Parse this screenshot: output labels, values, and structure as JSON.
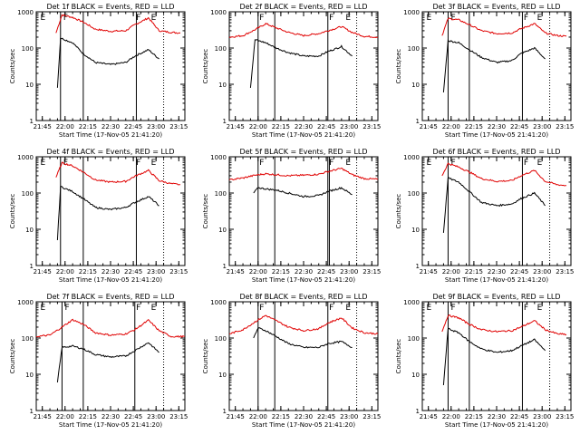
{
  "figure": {
    "x_tick_labels": [
      "21:45",
      "22:00",
      "22:15",
      "22:30",
      "22:45",
      "23:00",
      "23:15"
    ],
    "y_tick_labels": [
      "1",
      "10",
      "100",
      "1000"
    ],
    "xlabel": "Start Time (17-Nov-05 21:41:20)",
    "ylabel": "Counts/sec",
    "marker_labels": [
      "E",
      "F",
      "F",
      "E"
    ],
    "colors": {
      "black_series": "#000000",
      "red_series": "#e00000",
      "axes": "#000000",
      "background": "#ffffff"
    }
  },
  "chart_data": [
    {
      "type": "line",
      "title": "Det 1f BLACK = Events, RED = LLD",
      "xlabel": "Start Time (17-Nov-05 21:41:20)",
      "ylabel": "Counts/sec",
      "x_unit": "time (HH:MM, 17-Nov-05)",
      "xlim": [
        "21:41",
        "23:19"
      ],
      "ylim": [
        1,
        1000
      ],
      "yscale": "log",
      "vertical_lines": {
        "solid": [
          "21:57",
          "22:12",
          "22:47"
        ],
        "dotted": [
          "23:05"
        ]
      },
      "markers": [
        {
          "label": "E",
          "x": "21:43"
        },
        {
          "label": "F",
          "x": "21:58"
        },
        {
          "label": "F",
          "x": "22:46"
        },
        {
          "label": "E",
          "x": "22:56"
        }
      ],
      "series": [
        {
          "color": "red",
          "x": [
            "21:54",
            "21:58",
            "22:05",
            "22:12",
            "22:20",
            "22:30",
            "22:40",
            "22:46",
            "22:55",
            "23:02",
            "23:10",
            "23:16"
          ],
          "values": [
            260,
            820,
            700,
            520,
            330,
            290,
            300,
            440,
            680,
            300,
            270,
            260
          ]
        },
        {
          "color": "black",
          "x": [
            "21:55",
            "21:57",
            "22:05",
            "22:12",
            "22:20",
            "22:30",
            "22:40",
            "22:46",
            "22:55",
            "23:02"
          ],
          "values": [
            8,
            190,
            140,
            70,
            40,
            35,
            40,
            60,
            90,
            50
          ]
        }
      ]
    },
    {
      "type": "line",
      "title": "Det 2f BLACK = Events, RED = LLD",
      "xlabel": "Start Time (17-Nov-05 21:41:20)",
      "ylabel": "Counts/sec",
      "x_unit": "time (HH:MM, 17-Nov-05)",
      "xlim": [
        "21:41",
        "23:19"
      ],
      "ylim": [
        1,
        1000
      ],
      "yscale": "log",
      "vertical_lines": {
        "solid": [
          "22:00",
          "22:11",
          "22:46"
        ],
        "dotted": [
          "23:05"
        ]
      },
      "markers": [
        {
          "label": "F",
          "x": "22:00"
        },
        {
          "label": "F",
          "x": "22:46"
        },
        {
          "label": "E",
          "x": "22:57"
        }
      ],
      "series": [
        {
          "color": "red",
          "x": [
            "21:41",
            "21:50",
            "21:58",
            "22:05",
            "22:12",
            "22:20",
            "22:30",
            "22:40",
            "22:46",
            "22:55",
            "23:02",
            "23:10",
            "23:19"
          ],
          "values": [
            200,
            220,
            320,
            470,
            360,
            270,
            220,
            250,
            300,
            390,
            270,
            210,
            200
          ]
        },
        {
          "color": "black",
          "x": [
            "21:55",
            "21:58",
            "22:05",
            "22:12",
            "22:20",
            "22:30",
            "22:40",
            "22:46",
            "22:55",
            "23:02"
          ],
          "values": [
            8,
            170,
            140,
            100,
            75,
            60,
            60,
            80,
            110,
            60
          ]
        }
      ]
    },
    {
      "type": "line",
      "title": "Det 3f BLACK = Events, RED = LLD",
      "xlabel": "Start Time (17-Nov-05 21:41:20)",
      "ylabel": "Counts/sec",
      "x_unit": "time (HH:MM, 17-Nov-05)",
      "xlim": [
        "21:41",
        "23:19"
      ],
      "ylim": [
        1,
        1000
      ],
      "yscale": "log",
      "vertical_lines": {
        "solid": [
          "21:58",
          "22:12",
          "22:47"
        ],
        "dotted": [
          "23:05"
        ]
      },
      "markers": [
        {
          "label": "E",
          "x": "21:43"
        },
        {
          "label": "F",
          "x": "21:59"
        },
        {
          "label": "F",
          "x": "22:47"
        },
        {
          "label": "E",
          "x": "22:56"
        }
      ],
      "series": [
        {
          "color": "red",
          "x": [
            "21:54",
            "21:58",
            "22:05",
            "22:12",
            "22:20",
            "22:30",
            "22:40",
            "22:46",
            "22:55",
            "23:02",
            "23:10",
            "23:16"
          ],
          "values": [
            220,
            650,
            600,
            440,
            300,
            250,
            260,
            340,
            470,
            260,
            220,
            210
          ]
        },
        {
          "color": "black",
          "x": [
            "21:55",
            "21:58",
            "22:05",
            "22:12",
            "22:20",
            "22:30",
            "22:40",
            "22:46",
            "22:55",
            "23:02"
          ],
          "values": [
            6,
            160,
            140,
            90,
            55,
            40,
            45,
            70,
            100,
            50
          ]
        }
      ]
    },
    {
      "type": "line",
      "title": "Det 4f BLACK = Events, RED = LLD",
      "xlabel": "Start Time (17-Nov-05 21:41:20)",
      "ylabel": "Counts/sec",
      "x_unit": "time (HH:MM, 17-Nov-05)",
      "xlim": [
        "21:41",
        "23:19"
      ],
      "ylim": [
        1,
        1000
      ],
      "yscale": "log",
      "vertical_lines": {
        "solid": [
          "21:57",
          "22:12",
          "22:47"
        ],
        "dotted": [
          "23:05"
        ]
      },
      "markers": [
        {
          "label": "E",
          "x": "21:43"
        },
        {
          "label": "F",
          "x": "21:58"
        },
        {
          "label": "F",
          "x": "22:46"
        },
        {
          "label": "E",
          "x": "22:56"
        }
      ],
      "series": [
        {
          "color": "red",
          "x": [
            "21:54",
            "21:58",
            "22:05",
            "22:12",
            "22:20",
            "22:30",
            "22:40",
            "22:46",
            "22:55",
            "23:02",
            "23:10",
            "23:16"
          ],
          "values": [
            270,
            680,
            560,
            380,
            230,
            200,
            210,
            290,
            420,
            220,
            180,
            170
          ]
        },
        {
          "color": "black",
          "x": [
            "21:55",
            "21:57",
            "22:05",
            "22:12",
            "22:20",
            "22:30",
            "22:40",
            "22:46",
            "22:55",
            "23:02"
          ],
          "values": [
            5,
            150,
            110,
            70,
            40,
            35,
            40,
            55,
            80,
            45
          ]
        }
      ]
    },
    {
      "type": "line",
      "title": "Det 5f BLACK = Events, RED = LLD",
      "xlabel": "Start Time (17-Nov-05 21:41:20)",
      "ylabel": "Counts/sec",
      "x_unit": "time (HH:MM, 17-Nov-05)",
      "xlim": [
        "21:41",
        "23:19"
      ],
      "ylim": [
        1,
        1000
      ],
      "yscale": "log",
      "vertical_lines": {
        "solid": [
          "22:00",
          "22:11",
          "22:46",
          "22:47"
        ],
        "dotted": [
          "23:05"
        ]
      },
      "markers": [
        {
          "label": "F",
          "x": "22:00"
        },
        {
          "label": "F",
          "x": "22:46"
        },
        {
          "label": "E",
          "x": "22:57"
        }
      ],
      "series": [
        {
          "color": "red",
          "x": [
            "21:41",
            "21:50",
            "21:58",
            "22:05",
            "22:12",
            "22:20",
            "22:30",
            "22:40",
            "22:46",
            "22:55",
            "23:02",
            "23:10",
            "23:19"
          ],
          "values": [
            230,
            260,
            310,
            340,
            320,
            300,
            310,
            330,
            390,
            480,
            320,
            250,
            240
          ]
        },
        {
          "color": "black",
          "x": [
            "21:57",
            "22:00",
            "22:05",
            "22:12",
            "22:20",
            "22:30",
            "22:40",
            "22:46",
            "22:55",
            "23:02"
          ],
          "values": [
            100,
            140,
            130,
            120,
            100,
            80,
            85,
            110,
            140,
            90
          ]
        }
      ]
    },
    {
      "type": "line",
      "title": "Det 6f BLACK = Events, RED = LLD",
      "xlabel": "Start Time (17-Nov-05 21:41:20)",
      "ylabel": "Counts/sec",
      "x_unit": "time (HH:MM, 17-Nov-05)",
      "xlim": [
        "21:41",
        "23:19"
      ],
      "ylim": [
        1,
        1000
      ],
      "yscale": "log",
      "vertical_lines": {
        "solid": [
          "21:58",
          "22:12",
          "22:47"
        ],
        "dotted": [
          "23:05"
        ]
      },
      "markers": [
        {
          "label": "E",
          "x": "21:43"
        },
        {
          "label": "F",
          "x": "21:59"
        },
        {
          "label": "F",
          "x": "22:47"
        },
        {
          "label": "E",
          "x": "22:56"
        }
      ],
      "series": [
        {
          "color": "red",
          "x": [
            "21:54",
            "21:58",
            "22:05",
            "22:12",
            "22:20",
            "22:30",
            "22:40",
            "22:46",
            "22:55",
            "23:02",
            "23:10",
            "23:16"
          ],
          "values": [
            300,
            650,
            520,
            380,
            250,
            210,
            220,
            300,
            420,
            210,
            170,
            160
          ]
        },
        {
          "color": "black",
          "x": [
            "21:55",
            "21:58",
            "22:05",
            "22:12",
            "22:20",
            "22:30",
            "22:40",
            "22:46",
            "22:55",
            "23:02"
          ],
          "values": [
            8,
            260,
            200,
            110,
            55,
            45,
            50,
            70,
            100,
            45
          ]
        }
      ]
    },
    {
      "type": "line",
      "title": "Det 7f BLACK = Events, RED = LLD",
      "xlabel": "Start Time (17-Nov-05 21:41:20)",
      "ylabel": "Counts/sec",
      "x_unit": "time (HH:MM, 17-Nov-05)",
      "xlim": [
        "21:41",
        "23:19"
      ],
      "ylim": [
        1,
        1000
      ],
      "yscale": "log",
      "vertical_lines": {
        "solid": [
          "21:58",
          "22:12",
          "22:46"
        ],
        "dotted": [
          "23:05"
        ]
      },
      "markers": [
        {
          "label": "E",
          "x": "21:43"
        },
        {
          "label": "F",
          "x": "21:59"
        },
        {
          "label": "F",
          "x": "22:46"
        },
        {
          "label": "E",
          "x": "22:56"
        }
      ],
      "series": [
        {
          "color": "red",
          "x": [
            "21:41",
            "21:50",
            "21:58",
            "22:05",
            "22:12",
            "22:20",
            "22:30",
            "22:40",
            "22:46",
            "22:55",
            "23:02",
            "23:10",
            "23:19"
          ],
          "values": [
            110,
            120,
            200,
            320,
            240,
            140,
            120,
            130,
            170,
            310,
            160,
            110,
            110
          ]
        },
        {
          "color": "black",
          "x": [
            "21:55",
            "21:58",
            "22:05",
            "22:12",
            "22:20",
            "22:30",
            "22:40",
            "22:46",
            "22:55",
            "23:02"
          ],
          "values": [
            6,
            55,
            60,
            50,
            35,
            30,
            32,
            45,
            75,
            40
          ]
        }
      ]
    },
    {
      "type": "line",
      "title": "Det 8f BLACK = Events, RED = LLD",
      "xlabel": "Start Time (17-Nov-05 21:41:20)",
      "ylabel": "Counts/sec",
      "x_unit": "time (HH:MM, 17-Nov-05)",
      "xlim": [
        "21:41",
        "23:19"
      ],
      "ylim": [
        1,
        1000
      ],
      "yscale": "log",
      "vertical_lines": {
        "solid": [
          "22:00",
          "22:11",
          "22:46"
        ],
        "dotted": [
          "23:05"
        ]
      },
      "markers": [
        {
          "label": "F",
          "x": "22:00"
        },
        {
          "label": "F",
          "x": "22:46"
        },
        {
          "label": "E",
          "x": "22:57"
        }
      ],
      "series": [
        {
          "color": "red",
          "x": [
            "21:41",
            "21:50",
            "21:58",
            "22:05",
            "22:12",
            "22:20",
            "22:30",
            "22:40",
            "22:46",
            "22:55",
            "23:02",
            "23:10",
            "23:19"
          ],
          "values": [
            130,
            170,
            280,
            420,
            300,
            200,
            160,
            180,
            260,
            360,
            190,
            140,
            130
          ]
        },
        {
          "color": "black",
          "x": [
            "21:57",
            "22:00",
            "22:05",
            "22:12",
            "22:20",
            "22:30",
            "22:40",
            "22:46",
            "22:55",
            "23:02"
          ],
          "values": [
            100,
            190,
            160,
            110,
            70,
            55,
            55,
            70,
            80,
            55
          ]
        }
      ]
    },
    {
      "type": "line",
      "title": "Det 9f BLACK = Events, RED = LLD",
      "xlabel": "Start Time (17-Nov-05 21:41:20)",
      "ylabel": "Counts/sec",
      "x_unit": "time (HH:MM, 17-Nov-05)",
      "xlim": [
        "21:41",
        "23:19"
      ],
      "ylim": [
        1,
        1000
      ],
      "yscale": "log",
      "vertical_lines": {
        "solid": [
          "21:58",
          "22:12",
          "22:47"
        ],
        "dotted": [
          "23:05"
        ]
      },
      "markers": [
        {
          "label": "E",
          "x": "21:43"
        },
        {
          "label": "F",
          "x": "21:59"
        },
        {
          "label": "F",
          "x": "22:47"
        },
        {
          "label": "E",
          "x": "22:56"
        }
      ],
      "series": [
        {
          "color": "red",
          "x": [
            "21:54",
            "21:58",
            "22:05",
            "22:12",
            "22:20",
            "22:30",
            "22:40",
            "22:46",
            "22:55",
            "23:02",
            "23:10",
            "23:16"
          ],
          "values": [
            150,
            420,
            360,
            240,
            170,
            150,
            160,
            200,
            300,
            170,
            130,
            125
          ]
        },
        {
          "color": "black",
          "x": [
            "21:55",
            "21:58",
            "22:05",
            "22:12",
            "22:20",
            "22:30",
            "22:40",
            "22:46",
            "22:55",
            "23:02"
          ],
          "values": [
            5,
            180,
            140,
            80,
            50,
            40,
            45,
            60,
            90,
            45
          ]
        }
      ]
    }
  ]
}
